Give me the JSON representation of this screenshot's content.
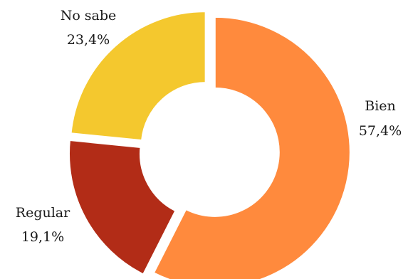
{
  "chart_data": {
    "type": "pie",
    "variant": "donut",
    "categories": [
      "Bien",
      "Regular",
      "No sabe"
    ],
    "values": [
      57.4,
      19.1,
      23.4
    ],
    "value_labels": [
      "57,4%",
      "19,1%",
      "23,4%"
    ],
    "colors": [
      "#FF8A3D",
      "#B22C17",
      "#F4C82E"
    ],
    "start_angle_deg": 0,
    "direction": "clockwise",
    "exploded": true,
    "legend": "none"
  }
}
